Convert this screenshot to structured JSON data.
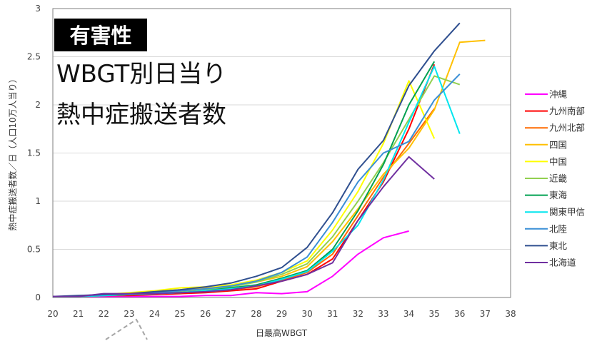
{
  "chart_data": {
    "type": "line",
    "badge": "有害性",
    "title_lines": [
      "WBGT別日当り",
      "熱中症搬送者数"
    ],
    "xlabel": "日最高WBGT",
    "ylabel": "熱中症搬送者数／日（人口10万人当り）",
    "xlim": [
      20,
      38
    ],
    "ylim": [
      0,
      3
    ],
    "x_ticks": [
      20,
      21,
      22,
      23,
      24,
      25,
      26,
      27,
      28,
      29,
      30,
      31,
      32,
      33,
      34,
      35,
      36,
      37,
      38
    ],
    "y_ticks": [
      0,
      0.5,
      1,
      1.5,
      2,
      2.5,
      3
    ],
    "y_tick_labels": [
      "0",
      "0.5",
      "1",
      "1.5",
      "2",
      "2.5",
      "3"
    ],
    "grid": "y",
    "legend_position": "right",
    "series": [
      {
        "name": "沖縄",
        "color": "#ff00ff",
        "x": [
          20,
          21,
          22,
          23,
          24,
          25,
          26,
          27,
          28,
          29,
          30,
          31,
          32,
          33,
          34
        ],
        "values": [
          0.01,
          0.01,
          0.01,
          0.01,
          0.01,
          0.01,
          0.02,
          0.02,
          0.05,
          0.04,
          0.06,
          0.22,
          0.45,
          0.62,
          0.69
        ]
      },
      {
        "name": "九州南部",
        "color": "#ff0000",
        "x": [
          20,
          21,
          22,
          23,
          24,
          25,
          26,
          27,
          28,
          29,
          30,
          31,
          32,
          33,
          34,
          35
        ],
        "values": [
          0.01,
          0.01,
          0.02,
          0.02,
          0.03,
          0.04,
          0.05,
          0.07,
          0.09,
          0.17,
          0.24,
          0.4,
          0.8,
          1.2,
          1.75,
          2.42
        ]
      },
      {
        "name": "九州北部",
        "color": "#ff6a00",
        "x": [
          20,
          21,
          22,
          23,
          24,
          25,
          26,
          27,
          28,
          29,
          30,
          31,
          32,
          33,
          34,
          35
        ],
        "values": [
          0.01,
          0.01,
          0.02,
          0.03,
          0.04,
          0.05,
          0.06,
          0.08,
          0.11,
          0.18,
          0.26,
          0.45,
          0.85,
          1.25,
          1.6,
          1.96
        ]
      },
      {
        "name": "四国",
        "color": "#ffc000",
        "x": [
          20,
          21,
          22,
          23,
          24,
          25,
          26,
          27,
          28,
          29,
          30,
          31,
          32,
          33,
          34,
          35,
          36,
          37
        ],
        "values": [
          0.01,
          0.01,
          0.02,
          0.04,
          0.06,
          0.08,
          0.1,
          0.12,
          0.16,
          0.22,
          0.32,
          0.58,
          0.92,
          1.28,
          1.55,
          1.95,
          2.65,
          2.67
        ]
      },
      {
        "name": "中国",
        "color": "#ffff00",
        "x": [
          20,
          21,
          22,
          23,
          24,
          25,
          26,
          27,
          28,
          29,
          30,
          31,
          32,
          33,
          34,
          35
        ],
        "values": [
          0.01,
          0.01,
          0.03,
          0.05,
          0.07,
          0.1,
          0.11,
          0.13,
          0.18,
          0.26,
          0.38,
          0.7,
          1.1,
          1.6,
          2.25,
          1.65
        ]
      },
      {
        "name": "近畿",
        "color": "#92d050",
        "x": [
          20,
          21,
          22,
          23,
          24,
          25,
          26,
          27,
          28,
          29,
          30,
          31,
          32,
          33,
          34,
          35,
          36
        ],
        "values": [
          0.01,
          0.01,
          0.02,
          0.03,
          0.05,
          0.06,
          0.08,
          0.11,
          0.16,
          0.24,
          0.35,
          0.63,
          1.0,
          1.4,
          1.85,
          2.3,
          2.21
        ]
      },
      {
        "name": "東海",
        "color": "#00a050",
        "x": [
          20,
          21,
          22,
          23,
          24,
          25,
          26,
          27,
          28,
          29,
          30,
          31,
          32,
          33,
          34,
          35
        ],
        "values": [
          0.01,
          0.01,
          0.02,
          0.03,
          0.04,
          0.05,
          0.07,
          0.1,
          0.13,
          0.2,
          0.28,
          0.5,
          0.9,
          1.38,
          2.0,
          2.45
        ]
      },
      {
        "name": "関東甲信",
        "color": "#00e5ee",
        "x": [
          20,
          21,
          22,
          23,
          24,
          25,
          26,
          27,
          28,
          29,
          30,
          31,
          32,
          33,
          34,
          35,
          36
        ],
        "values": [
          0.01,
          0.01,
          0.02,
          0.03,
          0.04,
          0.05,
          0.07,
          0.09,
          0.12,
          0.19,
          0.27,
          0.48,
          0.75,
          1.22,
          1.82,
          2.4,
          1.7
        ]
      },
      {
        "name": "北陸",
        "color": "#3a8fd6",
        "x": [
          20,
          21,
          22,
          23,
          24,
          25,
          26,
          27,
          28,
          29,
          30,
          31,
          32,
          33,
          34,
          35,
          36
        ],
        "values": [
          0.01,
          0.01,
          0.03,
          0.03,
          0.05,
          0.07,
          0.09,
          0.12,
          0.17,
          0.26,
          0.42,
          0.78,
          1.2,
          1.5,
          1.62,
          2.05,
          2.32
        ]
      },
      {
        "name": "東北",
        "color": "#2f4f8f",
        "x": [
          20,
          21,
          22,
          23,
          24,
          25,
          26,
          27,
          28,
          29,
          30,
          31,
          32,
          33,
          34,
          35,
          36
        ],
        "values": [
          0.01,
          0.02,
          0.03,
          0.04,
          0.06,
          0.08,
          0.11,
          0.15,
          0.22,
          0.31,
          0.52,
          0.88,
          1.33,
          1.63,
          2.2,
          2.56,
          2.85
        ]
      },
      {
        "name": "北海道",
        "color": "#7030a0",
        "x": [
          20,
          21,
          22,
          23,
          24,
          25,
          26,
          27,
          28,
          29,
          30,
          31,
          32,
          33,
          34,
          35
        ],
        "values": [
          0.01,
          0.01,
          0.04,
          0.04,
          0.04,
          0.05,
          0.06,
          0.08,
          0.12,
          0.17,
          0.24,
          0.36,
          0.8,
          1.15,
          1.46,
          1.23
        ]
      }
    ]
  }
}
